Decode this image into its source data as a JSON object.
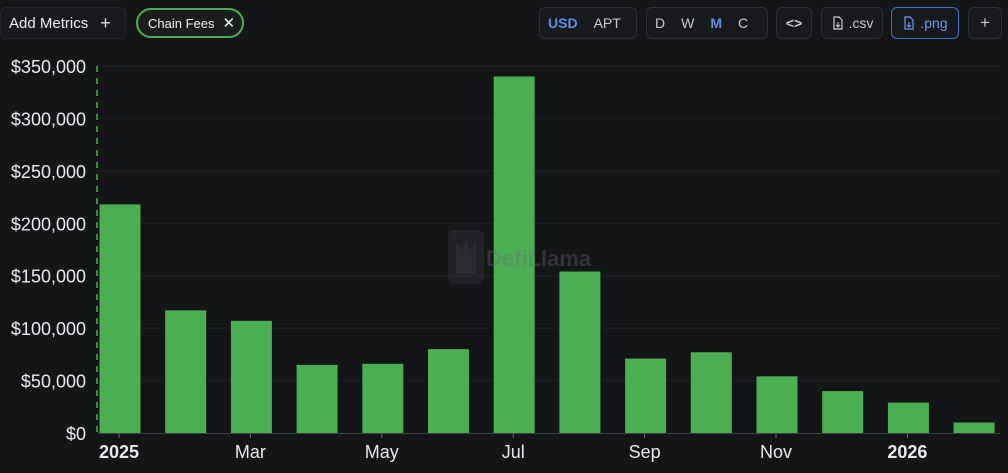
{
  "toolbar": {
    "add_metrics_label": "Add Metrics",
    "add_metrics_icon": "plus-icon",
    "chip_label": "Chain Fees",
    "chip_icon": "close-icon",
    "currency": [
      "USD",
      "APT"
    ],
    "currency_selected": "USD",
    "periods": [
      "D",
      "W",
      "M",
      "C"
    ],
    "period_selected": "M",
    "embed_icon": "code-icon",
    "csv_label": ".csv",
    "png_label": ".png",
    "add_icon": "plus-icon"
  },
  "watermark": "DefiLlama",
  "colors": {
    "bar": "#4cae52",
    "accent": "#5b8fe8",
    "background": "#141517"
  },
  "chart_data": {
    "type": "bar",
    "title": "",
    "xlabel": "",
    "ylabel": "",
    "series": [
      {
        "name": "Chain Fees",
        "values": [
          218000,
          117000,
          107000,
          65000,
          66000,
          80000,
          340000,
          154000,
          71000,
          77000,
          54000,
          40000,
          29000,
          10000
        ]
      }
    ],
    "x": [
      "2025-01",
      "2025-02",
      "2025-03",
      "2025-04",
      "2025-05",
      "2025-06",
      "2025-07",
      "2025-08",
      "2025-09",
      "2025-10",
      "2025-11",
      "2025-12",
      "2026-01",
      "2026-02"
    ],
    "x_tick_labels": [
      {
        "x": "2025-01",
        "label": "2025",
        "bold": true
      },
      {
        "x": "2025-03",
        "label": "Mar"
      },
      {
        "x": "2025-05",
        "label": "May"
      },
      {
        "x": "2025-07",
        "label": "Jul"
      },
      {
        "x": "2025-09",
        "label": "Sep"
      },
      {
        "x": "2025-11",
        "label": "Nov"
      },
      {
        "x": "2026-01",
        "label": "2026",
        "bold": true
      }
    ],
    "y_ticks": [
      0,
      50000,
      100000,
      150000,
      200000,
      250000,
      300000,
      350000
    ],
    "y_tick_labels": [
      "$0",
      "$50,000",
      "$100,000",
      "$150,000",
      "$200,000",
      "$250,000",
      "$300,000",
      "$350,000"
    ],
    "ylim": [
      0,
      350000
    ],
    "grid": true,
    "legend": "none"
  }
}
